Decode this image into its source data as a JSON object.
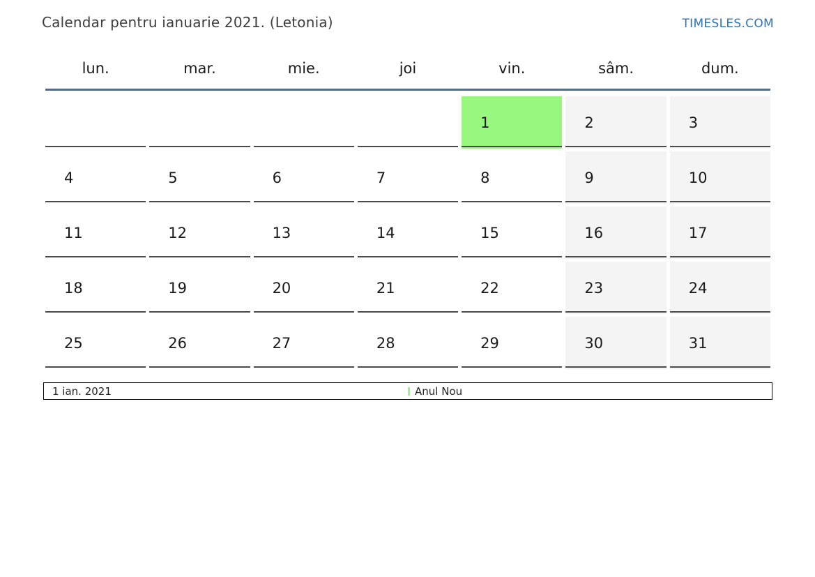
{
  "header": {
    "title": "Calendar pentru ianuarie 2021. (Letonia)",
    "brand": "TIMESLES.COM"
  },
  "calendar": {
    "weekday_headers": [
      "lun.",
      "mar.",
      "mie.",
      "joi",
      "vin.",
      "sâm.",
      "dum."
    ],
    "weeks": [
      [
        "",
        "",
        "",
        "",
        "1",
        "2",
        "3"
      ],
      [
        "4",
        "5",
        "6",
        "7",
        "8",
        "9",
        "10"
      ],
      [
        "11",
        "12",
        "13",
        "14",
        "15",
        "16",
        "17"
      ],
      [
        "18",
        "19",
        "20",
        "21",
        "22",
        "23",
        "24"
      ],
      [
        "25",
        "26",
        "27",
        "28",
        "29",
        "30",
        "31"
      ]
    ],
    "weekend_columns": [
      5,
      6
    ],
    "highlighted_day": "1",
    "colors": {
      "holiday_bg": "#98f77e",
      "weekend_bg": "#f4f4f4",
      "header_rule": "#4e6e91"
    }
  },
  "legend": {
    "date": "1 ian. 2021",
    "event": "Anul Nou",
    "marker_color": "#98f77e"
  }
}
